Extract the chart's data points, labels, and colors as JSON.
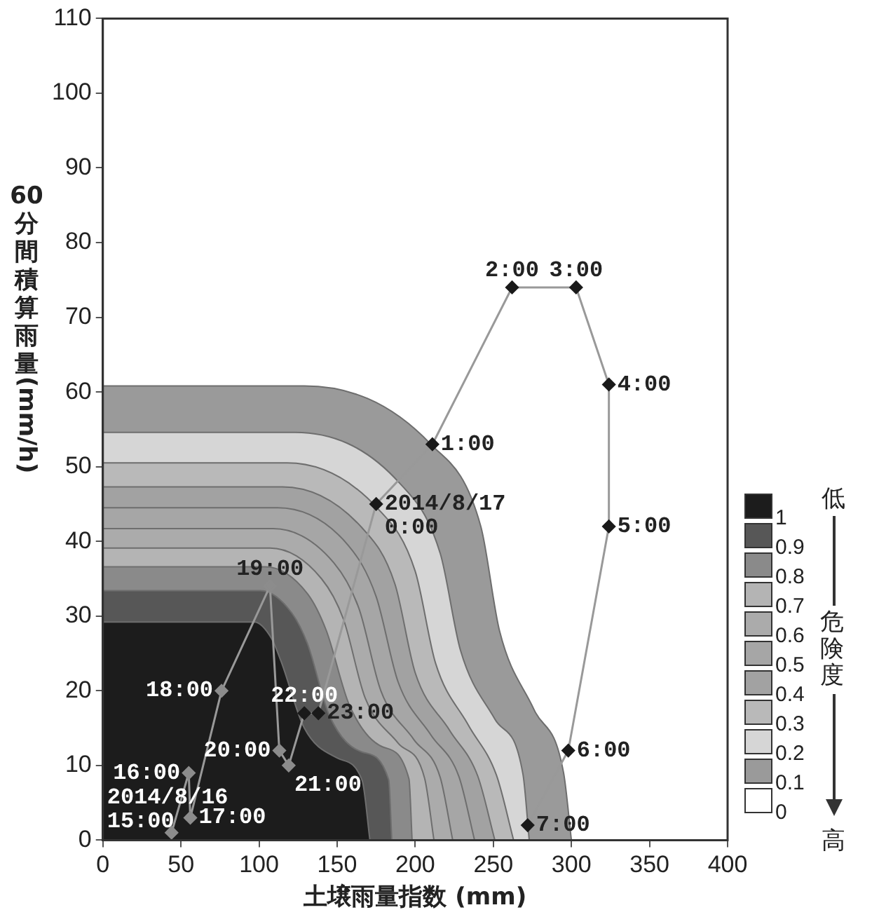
{
  "chart_data": {
    "type": "area",
    "xlabel": "土壌雨量指数 (mm)",
    "ylabel": "60分間積算雨量(mm/h)",
    "legend_title": "危険度",
    "legend": "right",
    "xlim": [
      0,
      400
    ],
    "xticks": [
      0,
      50,
      100,
      150,
      200,
      250,
      300,
      350,
      400
    ],
    "ylim": [
      0,
      110
    ],
    "yticks": [
      0,
      10,
      20,
      30,
      40,
      50,
      60,
      70,
      80,
      90,
      100,
      110
    ],
    "series": [
      {
        "name": "1",
        "color": "#1c1c1c",
        "x": [
          0,
          97,
          108,
          114,
          129,
          150,
          166,
          171
        ],
        "values": [
          29.2,
          29.2,
          27,
          24,
          15,
          11,
          8,
          0
        ]
      },
      {
        "name": "0.9",
        "color": "#575757",
        "x": [
          0,
          101,
          121,
          131,
          145,
          166,
          183,
          185
        ],
        "values": [
          33.4,
          33.4,
          30.4,
          26.3,
          16.7,
          11.8,
          8.1,
          0
        ]
      },
      {
        "name": "0.8",
        "color": "#8a8a8a",
        "x": [
          0,
          104,
          131,
          143,
          158,
          179,
          196,
          198
        ],
        "values": [
          36.6,
          36.6,
          33,
          28.1,
          18,
          12.5,
          8.2,
          0
        ]
      },
      {
        "name": "0.7",
        "color": "#b4b4b4",
        "x": [
          0,
          107,
          140,
          154,
          168,
          189,
          206,
          212
        ],
        "values": [
          39.1,
          39.1,
          35,
          29.6,
          19,
          13,
          8.3,
          0
        ]
      },
      {
        "name": "0.6",
        "color": "#ababab",
        "x": [
          0,
          109,
          148,
          164,
          178,
          199,
          216,
          224
        ],
        "values": [
          41.7,
          41.7,
          37.1,
          31,
          20,
          13.5,
          8.4,
          0
        ]
      },
      {
        "name": "0.5",
        "color": "#a6a6a6",
        "x": [
          0,
          112,
          157,
          175,
          189,
          210,
          228,
          238
        ],
        "values": [
          44.5,
          44.5,
          39.5,
          32.6,
          21.2,
          14.1,
          8.5,
          0
        ]
      },
      {
        "name": "0.4",
        "color": "#a2a2a2",
        "x": [
          0,
          115,
          166,
          187,
          200,
          222,
          240,
          251
        ],
        "values": [
          47.3,
          47.3,
          41.8,
          34.3,
          22.4,
          14.7,
          8.6,
          0
        ]
      },
      {
        "name": "0.3",
        "color": "#b9b9b9",
        "x": [
          0,
          118,
          176,
          200,
          213,
          234,
          252,
          263
        ],
        "values": [
          50.5,
          50.5,
          44.4,
          36,
          23.7,
          15.4,
          8.7,
          0
        ]
      },
      {
        "name": "0.2",
        "color": "#d6d6d6",
        "x": [
          0,
          123,
          190,
          216,
          229,
          251,
          269,
          273
        ],
        "values": [
          54.6,
          54.6,
          47.8,
          38.4,
          25.4,
          16.2,
          8.8,
          0
        ]
      },
      {
        "name": "0.1",
        "color": "#9a9a9a",
        "x": [
          0,
          129,
          210,
          242,
          254,
          276,
          295,
          300
        ],
        "values": [
          60.8,
          60.8,
          53,
          42,
          28,
          17.5,
          9,
          0
        ]
      },
      {
        "name": "0",
        "color": "#ffffff"
      },
      {
        "type": "line",
        "color": "#999999",
        "marker": "diamond",
        "line_style": "solid",
        "x": [
          44,
          55,
          56,
          76,
          107,
          113,
          119,
          129,
          138,
          175,
          211,
          262,
          303,
          324,
          324,
          298,
          272
        ],
        "values": [
          1,
          9,
          3,
          20,
          34,
          12,
          10,
          17,
          17,
          45,
          53,
          74,
          74,
          61,
          42,
          12,
          2
        ],
        "colors": [
          "#8c8c8c",
          "#8c8c8c",
          "#8c8c8c",
          "#8c8c8c",
          "#8c8c8c",
          "#8c8c8c",
          "#8c8c8c",
          "#1a1a1a",
          "#1a1a1a",
          "#1a1a1a",
          "#1a1a1a",
          "#1a1a1a",
          "#1a1a1a",
          "#1a1a1a",
          "#1a1a1a",
          "#1a1a1a",
          "#1a1a1a"
        ]
      }
    ],
    "annotations": [
      "低",
      "高",
      {
        "text": "2014/8/16\n15:00",
        "x": 44,
        "y": 1
      },
      {
        "text": "16:00",
        "x": 55,
        "y": 9
      },
      {
        "text": "17:00",
        "x": 56,
        "y": 3
      },
      {
        "text": "18:00",
        "x": 76,
        "y": 20
      },
      {
        "text": "19:00",
        "x": 107,
        "y": 34
      },
      {
        "text": "20:00",
        "x": 113,
        "y": 12
      },
      {
        "text": "21:00",
        "x": 119,
        "y": 10
      },
      {
        "text": "22:00",
        "x": 129,
        "y": 17
      },
      {
        "text": "23:00",
        "x": 138,
        "y": 17
      },
      {
        "text": "2014/8/17\n0:00",
        "x": 175,
        "y": 45
      },
      {
        "text": "1:00",
        "x": 211,
        "y": 53
      },
      {
        "text": "2:00",
        "x": 262,
        "y": 74
      },
      {
        "text": "3:00",
        "x": 303,
        "y": 74
      },
      {
        "text": "4:00",
        "x": 324,
        "y": 61
      },
      {
        "text": "5:00",
        "x": 324,
        "y": 42
      },
      {
        "text": "6:00",
        "x": 298,
        "y": 12
      },
      {
        "text": "7:00",
        "x": 272,
        "y": 2
      }
    ]
  }
}
